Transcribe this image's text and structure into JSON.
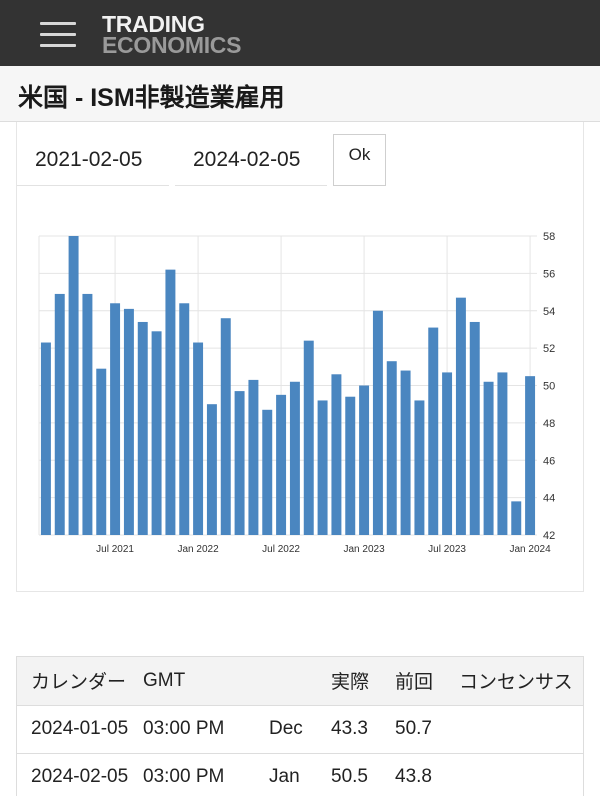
{
  "header": {
    "menu_icon": "hamburger-menu-icon",
    "logo_line1": "TRADING",
    "logo_line2": "ECONOMICS"
  },
  "page": {
    "title": "米国 - ISM非製造業雇用"
  },
  "controls": {
    "start_date": "2021-02-05",
    "end_date": "2024-02-05",
    "ok_label": "Ok"
  },
  "colors": {
    "bar": "#4a86c0",
    "topbar": "#333333",
    "grid": "#e4e4e4"
  },
  "chart_data": {
    "type": "bar",
    "title": "",
    "xlabel": "",
    "ylabel": "",
    "ylim": [
      42,
      58
    ],
    "y_ticks": [
      42,
      44,
      46,
      48,
      50,
      52,
      54,
      56,
      58
    ],
    "y_axis_side": "right",
    "grid": true,
    "categories": [
      "2021-02",
      "2021-03",
      "2021-04",
      "2021-05",
      "2021-06",
      "2021-07",
      "2021-08",
      "2021-09",
      "2021-10",
      "2021-11",
      "2021-12",
      "2022-01",
      "2022-02",
      "2022-03",
      "2022-04",
      "2022-05",
      "2022-06",
      "2022-07",
      "2022-08",
      "2022-09",
      "2022-10",
      "2022-11",
      "2022-12",
      "2023-01",
      "2023-02",
      "2023-03",
      "2023-04",
      "2023-05",
      "2023-06",
      "2023-07",
      "2023-08",
      "2023-09",
      "2023-10",
      "2023-11",
      "2023-12",
      "2024-01"
    ],
    "values": [
      52.3,
      54.9,
      58.0,
      54.9,
      50.9,
      54.4,
      54.1,
      53.4,
      52.9,
      56.2,
      54.4,
      52.3,
      49.0,
      53.6,
      49.7,
      50.3,
      48.7,
      49.5,
      50.2,
      52.4,
      49.2,
      50.6,
      49.4,
      50.0,
      54.0,
      51.3,
      50.8,
      49.2,
      53.1,
      50.7,
      54.7,
      53.4,
      50.2,
      50.7,
      43.8,
      50.5
    ],
    "x_tick_labels": [
      {
        "label": "Jul 2021",
        "category": "2021-07"
      },
      {
        "label": "Jan 2022",
        "category": "2022-01"
      },
      {
        "label": "Jul 2022",
        "category": "2022-07"
      },
      {
        "label": "Jan 2023",
        "category": "2023-01"
      },
      {
        "label": "Jul 2023",
        "category": "2023-07"
      },
      {
        "label": "Jan 2024",
        "category": "2024-01"
      }
    ]
  },
  "calendar": {
    "headers": [
      "カレンダー",
      "GMT",
      "",
      "実際",
      "前回",
      "コンセンサス"
    ],
    "rows": [
      {
        "date": "2024-01-05",
        "time": "03:00 PM",
        "ref": "Dec",
        "actual": "43.3",
        "previous": "50.7",
        "consensus": ""
      },
      {
        "date": "2024-02-05",
        "time": "03:00 PM",
        "ref": "Jan",
        "actual": "50.5",
        "previous": "43.8",
        "consensus": ""
      }
    ]
  }
}
